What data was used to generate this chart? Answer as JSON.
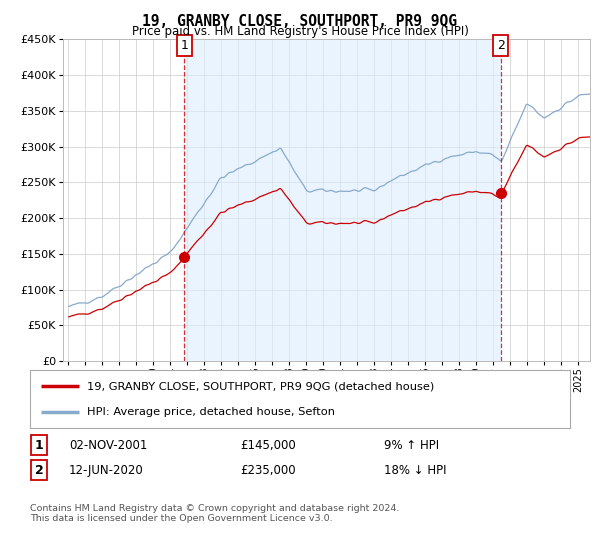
{
  "title": "19, GRANBY CLOSE, SOUTHPORT, PR9 9QG",
  "subtitle": "Price paid vs. HM Land Registry's House Price Index (HPI)",
  "legend_line1": "19, GRANBY CLOSE, SOUTHPORT, PR9 9QG (detached house)",
  "legend_line2": "HPI: Average price, detached house, Sefton",
  "transaction1_date": "02-NOV-2001",
  "transaction1_price": "£145,000",
  "transaction1_hpi": "9% ↑ HPI",
  "transaction2_date": "12-JUN-2020",
  "transaction2_price": "£235,000",
  "transaction2_hpi": "18% ↓ HPI",
  "footer": "Contains HM Land Registry data © Crown copyright and database right 2024.\nThis data is licensed under the Open Government Licence v3.0.",
  "ylim": [
    0,
    450000
  ],
  "yticks": [
    0,
    50000,
    100000,
    150000,
    200000,
    250000,
    300000,
    350000,
    400000,
    450000
  ],
  "line_color_property": "#cc0000",
  "line_color_hpi": "#88aacc",
  "vline_color": "#cc0000",
  "fill_color": "#ddeeff",
  "background_color": "#ffffff",
  "grid_color": "#cccccc",
  "sale1_year": 2001.833,
  "sale1_price": 145000,
  "sale2_year": 2020.458,
  "sale2_price": 235000
}
